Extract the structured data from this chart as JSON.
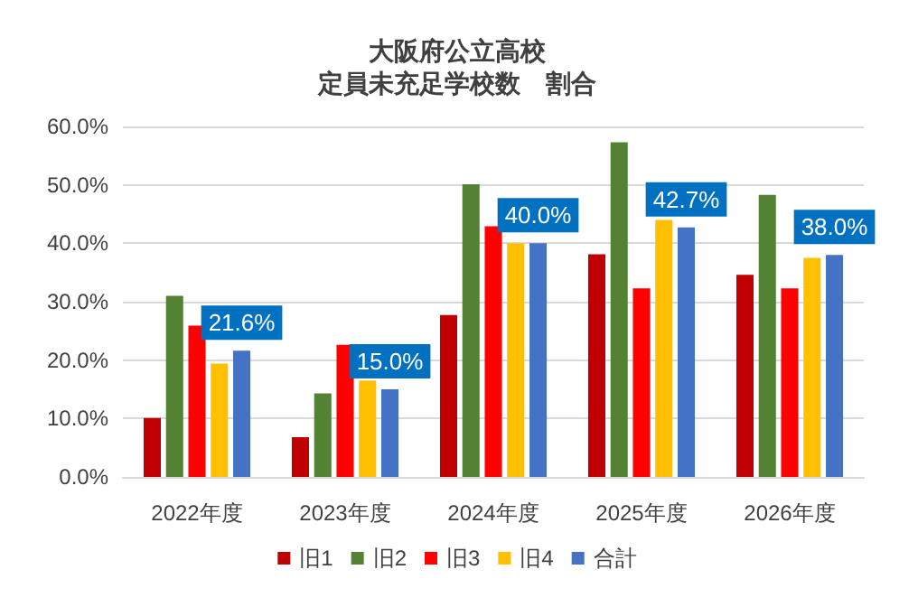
{
  "chart_data": {
    "type": "bar",
    "title": "大阪府公立高校",
    "subtitle": "定員未充足学校数　割合",
    "categories": [
      "2022年度",
      "2023年度",
      "2024年度",
      "2025年度",
      "2026年度"
    ],
    "series": [
      {
        "name": "旧1",
        "color": "#c00000",
        "values": [
          10.1,
          6.8,
          27.7,
          38.1,
          34.6
        ]
      },
      {
        "name": "旧2",
        "color": "#548235",
        "values": [
          31.0,
          14.3,
          50.1,
          57.3,
          48.3
        ]
      },
      {
        "name": "旧3",
        "color": "#ff0000",
        "values": [
          25.9,
          22.6,
          42.9,
          32.3,
          32.3
        ]
      },
      {
        "name": "旧4",
        "color": "#ffc000",
        "values": [
          19.4,
          16.5,
          40.0,
          44.0,
          37.5
        ]
      },
      {
        "name": "合計",
        "color": "#4472c4",
        "values": [
          21.6,
          15.0,
          40.0,
          42.7,
          38.0
        ],
        "value_labels": [
          "21.6%",
          "15.0%",
          "40.0%",
          "42.7%",
          "38.0%"
        ]
      }
    ],
    "ylim": [
      0,
      60
    ],
    "yticks": [
      {
        "value": 0,
        "label": "0.0%"
      },
      {
        "value": 10,
        "label": "10.0%"
      },
      {
        "value": 20,
        "label": "20.0%"
      },
      {
        "value": 30,
        "label": "30.0%"
      },
      {
        "value": 40,
        "label": "40.0%"
      },
      {
        "value": 50,
        "label": "50.0%"
      },
      {
        "value": 60,
        "label": "60.0%"
      }
    ],
    "grid": "y",
    "legend": "bottom"
  }
}
